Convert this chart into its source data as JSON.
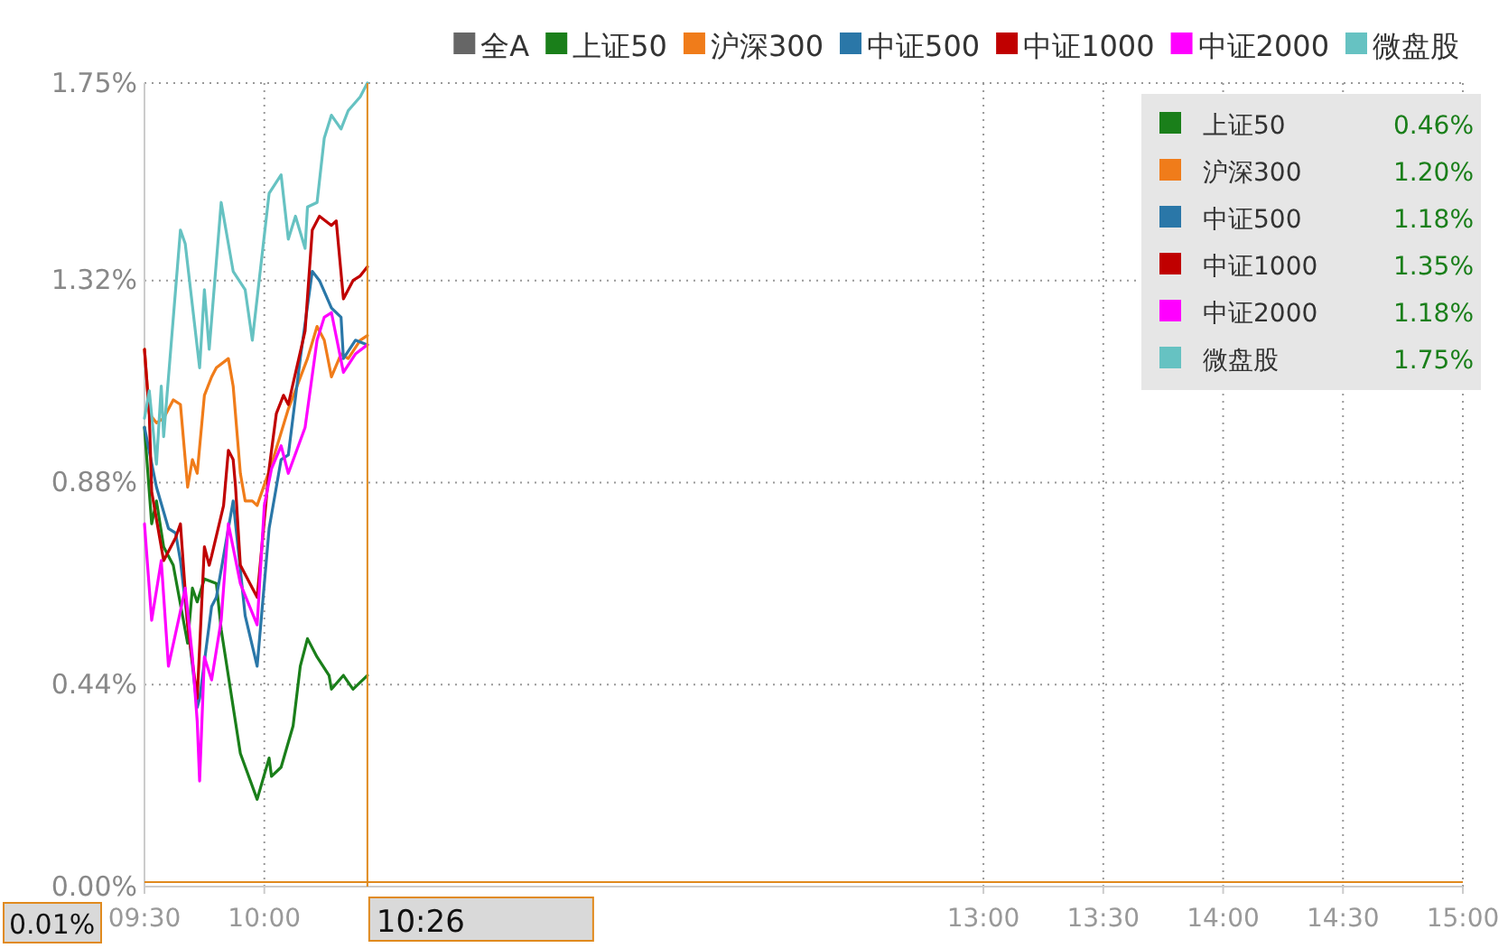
{
  "chart_data": {
    "type": "line",
    "xlim": [
      9.5,
      15
    ],
    "xticks": [
      {
        "value": 9.5,
        "label": "09:30"
      },
      {
        "value": 10,
        "label": "10:00"
      },
      {
        "value": 13,
        "label": "13:00"
      },
      {
        "value": 13.5,
        "label": "13:30"
      },
      {
        "value": 14,
        "label": "14:00"
      },
      {
        "value": 14.5,
        "label": "14:30"
      },
      {
        "value": 15,
        "label": "15:00"
      }
    ],
    "ylim": [
      0,
      1.75
    ],
    "yticks": [
      {
        "value": 0,
        "label": "0.00%"
      },
      {
        "value": 0.44,
        "label": "0.44%"
      },
      {
        "value": 0.88,
        "label": "0.88%"
      },
      {
        "value": 1.32,
        "label": "1.32%"
      },
      {
        "value": 1.75,
        "label": "1.75%"
      }
    ],
    "grid": true,
    "legend": "top right",
    "line_style": "solid",
    "marker": "none",
    "series": [
      {
        "name": "全A",
        "color": "#666666"
      },
      {
        "name": "上证50",
        "color": "#1a7f1a",
        "x": [
          9.5,
          9.53,
          9.55,
          9.58,
          9.62,
          9.68,
          9.7,
          9.72,
          9.75,
          9.8,
          9.82,
          9.9,
          9.97,
          10.02,
          10.03,
          10.07,
          10.12,
          10.15,
          10.18,
          10.22,
          10.27,
          10.28,
          10.33,
          10.37,
          10.43
        ],
        "values": [
          1.0,
          0.79,
          0.84,
          0.74,
          0.7,
          0.53,
          0.65,
          0.62,
          0.67,
          0.66,
          0.56,
          0.29,
          0.19,
          0.28,
          0.24,
          0.26,
          0.35,
          0.48,
          0.54,
          0.5,
          0.46,
          0.43,
          0.46,
          0.43,
          0.46
        ]
      },
      {
        "name": "沪深300",
        "color": "#f07c1a",
        "x": [
          9.5,
          9.52,
          9.55,
          9.58,
          9.62,
          9.65,
          9.68,
          9.7,
          9.72,
          9.75,
          9.78,
          9.8,
          9.85,
          9.87,
          9.9,
          9.92,
          9.95,
          9.97,
          10.03,
          10.1,
          10.18,
          10.22,
          10.25,
          10.28,
          10.32,
          10.35,
          10.4,
          10.43
        ],
        "values": [
          1.17,
          1.03,
          1.01,
          1.02,
          1.06,
          1.05,
          0.87,
          0.93,
          0.9,
          1.07,
          1.11,
          1.13,
          1.15,
          1.09,
          0.9,
          0.84,
          0.84,
          0.83,
          0.92,
          1.04,
          1.15,
          1.22,
          1.19,
          1.11,
          1.16,
          1.15,
          1.19,
          1.2
        ]
      },
      {
        "name": "中证500",
        "color": "#2a77a8",
        "x": [
          9.5,
          9.55,
          9.6,
          9.63,
          9.65,
          9.72,
          9.73,
          9.78,
          9.8,
          9.87,
          9.92,
          9.97,
          10.02,
          10.07,
          10.1,
          10.15,
          10.2,
          10.23,
          10.28,
          10.32,
          10.33,
          10.38,
          10.43
        ],
        "values": [
          1.0,
          0.87,
          0.78,
          0.77,
          0.71,
          0.39,
          0.41,
          0.61,
          0.63,
          0.84,
          0.59,
          0.48,
          0.78,
          0.93,
          0.94,
          1.15,
          1.34,
          1.32,
          1.26,
          1.24,
          1.15,
          1.19,
          1.18
        ]
      },
      {
        "name": "中证1000",
        "color": "#c00000",
        "x": [
          9.5,
          9.52,
          9.53,
          9.58,
          9.63,
          9.65,
          9.68,
          9.72,
          9.75,
          9.77,
          9.78,
          9.83,
          9.85,
          9.87,
          9.88,
          9.9,
          9.97,
          10.02,
          10.05,
          10.08,
          10.1,
          10.17,
          10.2,
          10.23,
          10.28,
          10.3,
          10.33,
          10.37,
          10.4,
          10.43
        ],
        "values": [
          1.17,
          1.03,
          0.86,
          0.71,
          0.76,
          0.79,
          0.57,
          0.41,
          0.74,
          0.7,
          0.72,
          0.83,
          0.95,
          0.93,
          0.87,
          0.7,
          0.63,
          0.91,
          1.03,
          1.07,
          1.05,
          1.21,
          1.43,
          1.46,
          1.44,
          1.45,
          1.28,
          1.32,
          1.33,
          1.35
        ]
      },
      {
        "name": "中证2000",
        "color": "#ff00ff",
        "x": [
          9.5,
          9.53,
          9.57,
          9.6,
          9.65,
          9.67,
          9.7,
          9.72,
          9.73,
          9.75,
          9.78,
          9.82,
          9.85,
          9.9,
          9.97,
          10,
          10.03,
          10.07,
          10.1,
          10.17,
          10.22,
          10.25,
          10.28,
          10.33,
          10.38,
          10.43
        ],
        "values": [
          0.79,
          0.58,
          0.71,
          0.48,
          0.6,
          0.65,
          0.5,
          0.36,
          0.23,
          0.5,
          0.45,
          0.58,
          0.79,
          0.66,
          0.57,
          0.83,
          0.91,
          0.96,
          0.9,
          1.0,
          1.19,
          1.24,
          1.25,
          1.12,
          1.16,
          1.18
        ]
      },
      {
        "name": "微盘股",
        "color": "#66c2c2",
        "x": [
          9.5,
          9.52,
          9.55,
          9.57,
          9.58,
          9.65,
          9.67,
          9.73,
          9.75,
          9.77,
          9.82,
          9.87,
          9.92,
          9.95,
          10.02,
          10.07,
          10.1,
          10.13,
          10.17,
          10.18,
          10.22,
          10.25,
          10.28,
          10.32,
          10.35,
          10.4,
          10.42,
          10.43
        ],
        "values": [
          1.02,
          1.08,
          0.92,
          1.09,
          0.98,
          1.43,
          1.4,
          1.13,
          1.3,
          1.17,
          1.49,
          1.34,
          1.3,
          1.19,
          1.51,
          1.55,
          1.41,
          1.46,
          1.39,
          1.48,
          1.49,
          1.63,
          1.68,
          1.65,
          1.69,
          1.72,
          1.74,
          1.75
        ]
      }
    ],
    "annotations": [
      "0.46%",
      "1.20%",
      "1.18%",
      "1.35%",
      "1.18%",
      "1.75%"
    ],
    "ref_lines": [
      {
        "axis": "y",
        "value": 0.01,
        "label": "0.01%",
        "color": "#e08a1e"
      },
      {
        "axis": "x",
        "value": 10.43,
        "label": "10:26",
        "color": "#e08a1e"
      }
    ]
  }
}
